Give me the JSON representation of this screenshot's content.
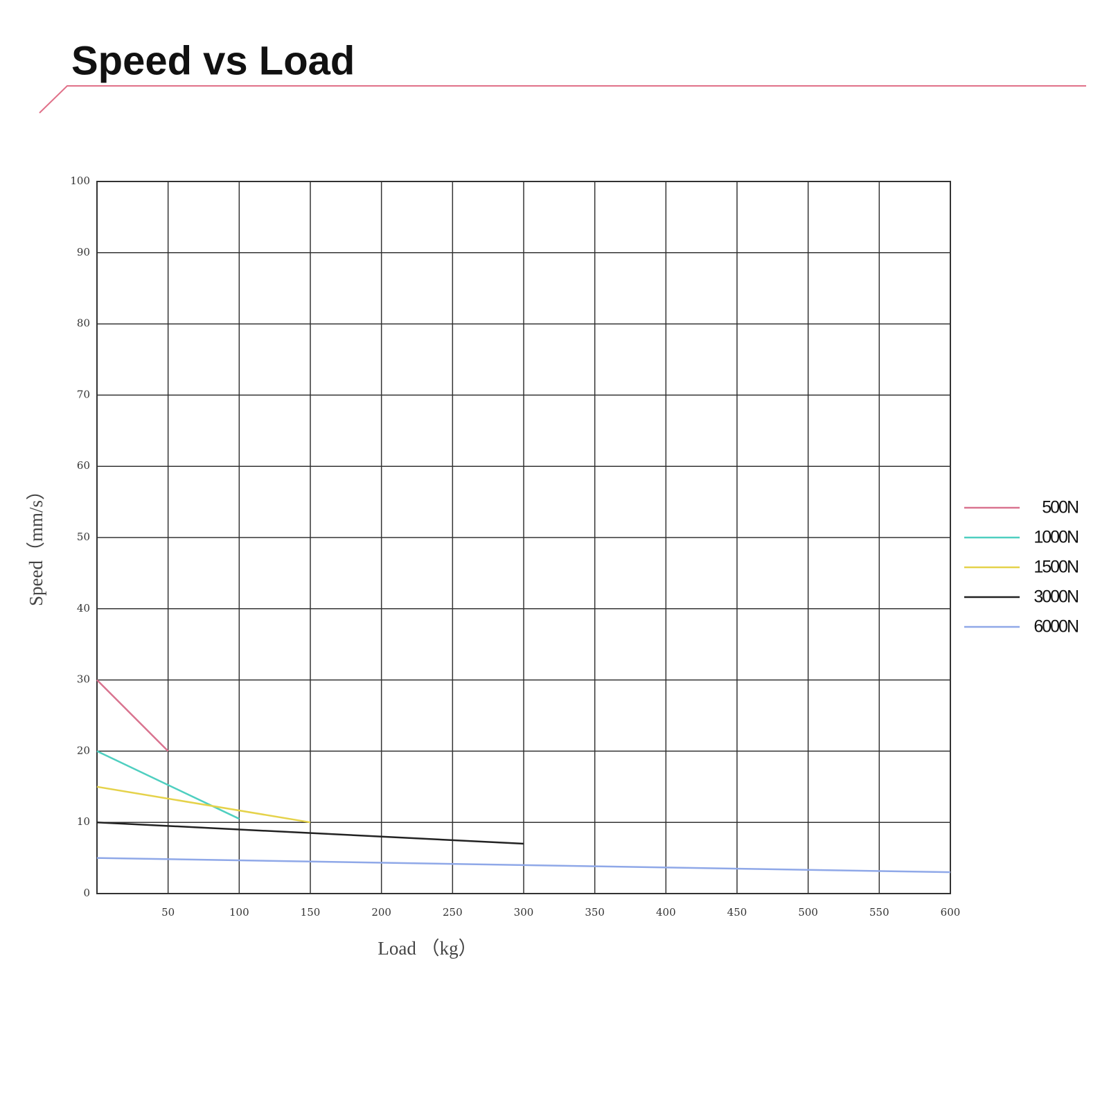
{
  "chart_data": {
    "type": "line",
    "title": "Speed vs Load",
    "x_label": "Load （kg）",
    "y_label": "Speed（mm/s）",
    "xlim": [
      0,
      600
    ],
    "ylim": [
      0,
      100
    ],
    "xticks": [
      50,
      100,
      150,
      200,
      250,
      300,
      350,
      400,
      450,
      500,
      550,
      600
    ],
    "yticks": [
      0,
      10,
      20,
      30,
      40,
      50,
      60,
      70,
      80,
      90,
      100
    ],
    "grid": true,
    "legend": "right",
    "series": [
      {
        "name": "500N",
        "color": "#d9738f",
        "x": [
          0,
          50
        ],
        "values": [
          30,
          20
        ]
      },
      {
        "name": "1000N",
        "color": "#4fcfc0",
        "x": [
          0,
          100
        ],
        "values": [
          20,
          10.5
        ]
      },
      {
        "name": "1500N",
        "color": "#e5d24a",
        "x": [
          0,
          150
        ],
        "values": [
          15,
          10
        ]
      },
      {
        "name": "3000N",
        "color": "#222222",
        "x": [
          0,
          300
        ],
        "values": [
          10,
          7
        ]
      },
      {
        "name": "6000N",
        "color": "#8fa8e8",
        "x": [
          0,
          600
        ],
        "values": [
          5,
          3
        ]
      }
    ]
  }
}
